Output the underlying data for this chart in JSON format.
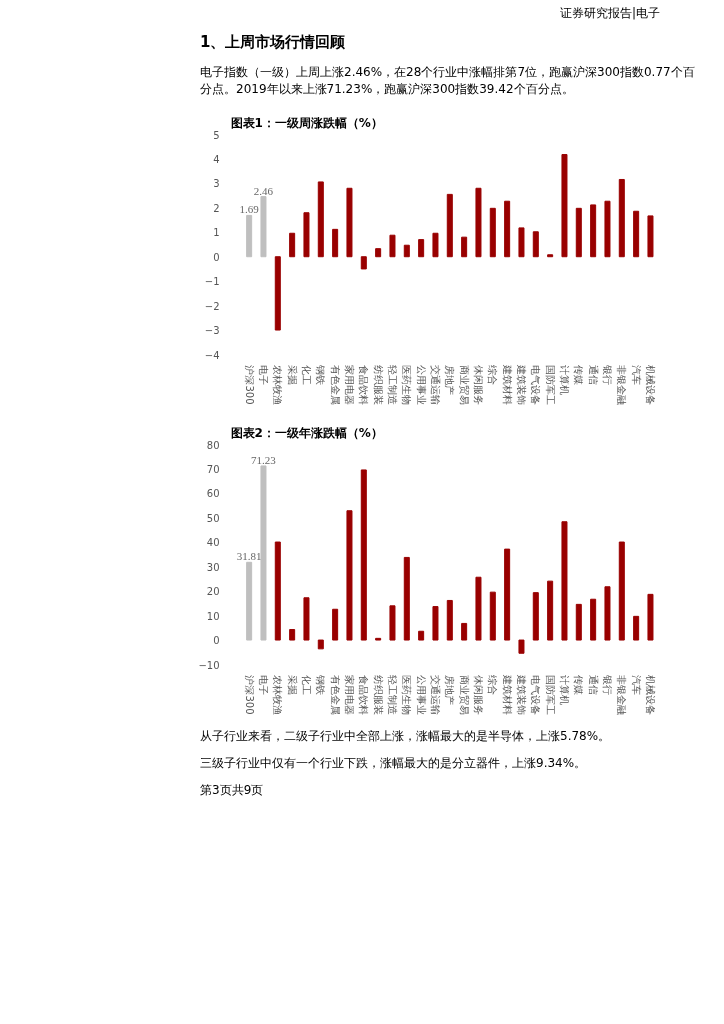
{
  "chart_data": [
    {
      "type": "bar",
      "title": "图表1：一级周涨跌幅（%）",
      "annotations": [
        "证券研究报告|电子",
        "1、上周市场行情回顾",
        "电子指数（一级）上周上涨2.46%，在28个行业中涨幅排第7位，跑赢沪深300指数0.77个百分点。2019年以来上涨71.23%，跑赢沪深300指数39.42个百分点。"
      ],
      "categories": [
        "沪深300",
        "电子",
        "农林牧渔",
        "采掘",
        "化工",
        "钢铁",
        "有色金属",
        "家用电器",
        "食品饮料",
        "纺织服装",
        "轻工制造",
        "医药生物",
        "公用事业",
        "交通运输",
        "房地产",
        "商业贸易",
        "休闲服务",
        "综合",
        "建筑材料",
        "建筑装饰",
        "电气设备",
        "国防军工",
        "计算机",
        "传媒",
        "通信",
        "银行",
        "非银金融",
        "汽车",
        "机械设备"
      ],
      "values": [
        1.69,
        2.46,
        -3.0,
        0.96,
        1.8,
        3.06,
        1.12,
        2.8,
        -0.5,
        0.33,
        0.88,
        0.47,
        0.7,
        0.96,
        2.55,
        0.8,
        2.8,
        1.98,
        2.27,
        1.18,
        1.02,
        0.08,
        4.18,
        1.98,
        2.12,
        2.27,
        3.16,
        1.86,
        1.67
      ],
      "colors": [
        "#bfbfbf",
        "#bfbfbf",
        "#990000",
        "#990000",
        "#990000",
        "#990000",
        "#990000",
        "#990000",
        "#990000",
        "#990000",
        "#990000",
        "#990000",
        "#990000",
        "#990000",
        "#990000",
        "#990000",
        "#990000",
        "#990000",
        "#990000",
        "#990000",
        "#990000",
        "#990000",
        "#990000",
        "#990000",
        "#990000",
        "#990000",
        "#990000",
        "#990000",
        "#990000"
      ],
      "value_labels": [
        "1.69",
        "2.46",
        null,
        null,
        null,
        null,
        null,
        null,
        null,
        null,
        null,
        null,
        null,
        null,
        null,
        null,
        null,
        null,
        null,
        null,
        null,
        null,
        null,
        null,
        null,
        null,
        null,
        null,
        null
      ],
      "ylim": [
        -4,
        5
      ],
      "yticks": [
        -4,
        -3,
        -2,
        -1,
        0,
        1,
        2,
        3,
        4,
        5
      ],
      "grid": false
    },
    {
      "type": "bar",
      "title": "图表2：一级年涨跌幅（%）",
      "annotations": [
        "从子行业来看，二级子行业中全部上涨，涨幅最大的是半导体，上涨5.78%。",
        "三级子行业中仅有一个行业下跌，涨幅最大的是分立器件，上涨9.34%。",
        "第3页共9页"
      ],
      "categories": [
        "沪深300",
        "电子",
        "农林牧渔",
        "采掘",
        "化工",
        "钢铁",
        "有色金属",
        "家用电器",
        "食品饮料",
        "纺织服装",
        "轻工制造",
        "医药生物",
        "公用事业",
        "交通运输",
        "房地产",
        "商业贸易",
        "休闲服务",
        "综合",
        "建筑材料",
        "建筑装饰",
        "电气设备",
        "国防军工",
        "计算机",
        "传媒",
        "通信",
        "银行",
        "非银金融",
        "汽车",
        "机械设备"
      ],
      "values": [
        31.81,
        71.23,
        40.1,
        4.3,
        17.3,
        -3.6,
        12.6,
        52.9,
        69.6,
        0.7,
        14,
        33.8,
        3.6,
        13.7,
        16.2,
        6.8,
        25.7,
        19.6,
        37.2,
        -5.4,
        19.4,
        24.1,
        48.4,
        14.6,
        16.7,
        21.8,
        40.1,
        9.7,
        18.7
      ],
      "colors": [
        "#bfbfbf",
        "#bfbfbf",
        "#990000",
        "#990000",
        "#990000",
        "#990000",
        "#990000",
        "#990000",
        "#990000",
        "#990000",
        "#990000",
        "#990000",
        "#990000",
        "#990000",
        "#990000",
        "#990000",
        "#990000",
        "#990000",
        "#990000",
        "#990000",
        "#990000",
        "#990000",
        "#990000",
        "#990000",
        "#990000",
        "#990000",
        "#990000",
        "#990000",
        "#990000"
      ],
      "value_labels": [
        "31.81",
        "71.23",
        null,
        null,
        null,
        null,
        null,
        null,
        null,
        null,
        null,
        null,
        null,
        null,
        null,
        null,
        null,
        null,
        null,
        null,
        null,
        null,
        null,
        null,
        null,
        null,
        null,
        null,
        null
      ],
      "ylim": [
        -10,
        80
      ],
      "yticks": [
        -10,
        0,
        10,
        20,
        30,
        40,
        50,
        60,
        70,
        80
      ],
      "grid": false
    }
  ]
}
